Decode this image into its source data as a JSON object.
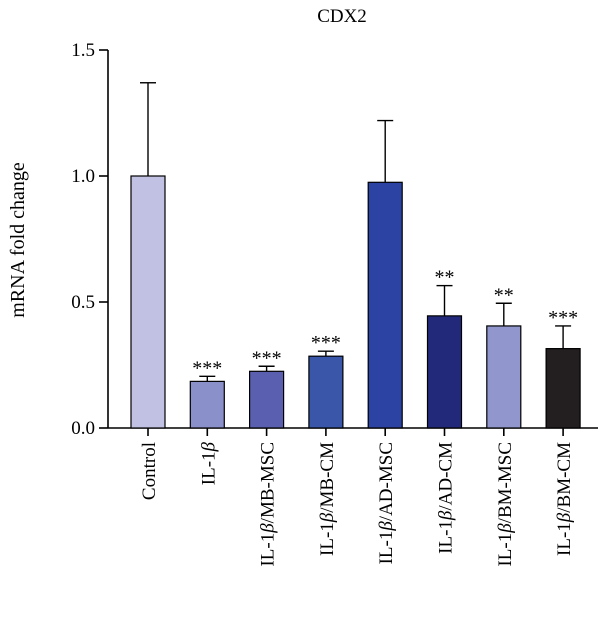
{
  "chart_data": {
    "type": "bar",
    "title": "CDX2",
    "ylabel": "mRNA fold change",
    "xlabel": "",
    "ylim": [
      0,
      1.5
    ],
    "yticks": [
      "0.0",
      "0.5",
      "1.0",
      "1.5"
    ],
    "ytick_values": [
      0,
      0.5,
      1.0,
      1.5
    ],
    "grid": false,
    "categories": [
      "Control",
      "IL-1β",
      "IL-1β/MB-MSC",
      "IL-1β/MB-CM",
      "IL-1β/AD-MSC",
      "IL-1β/AD-CM",
      "IL-1β/BM-MSC",
      "IL-1β/BM-CM"
    ],
    "values": [
      1.0,
      0.185,
      0.225,
      0.285,
      0.975,
      0.445,
      0.405,
      0.315
    ],
    "errors": [
      0.37,
      0.02,
      0.02,
      0.02,
      0.245,
      0.12,
      0.09,
      0.09
    ],
    "significance": [
      "",
      "***",
      "***",
      "***",
      "",
      "**",
      "**",
      "***"
    ],
    "colors": [
      "#c1c2e3",
      "#8a90c9",
      "#5a5fb0",
      "#3956a8",
      "#2c43a3",
      "#22287a",
      "#9196cc",
      "#231f20"
    ]
  }
}
